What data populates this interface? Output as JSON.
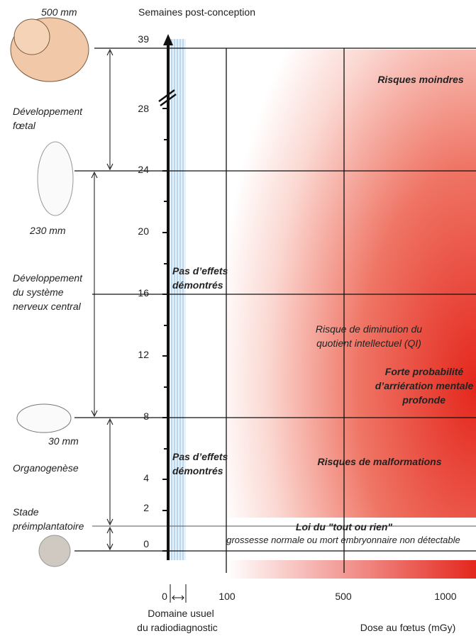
{
  "header": {
    "size_top": "500 mm",
    "axis_title": "Semaines post-conception"
  },
  "y_ticks": [
    "39",
    "28",
    "24",
    "20",
    "16",
    "12",
    "8",
    "4",
    "2",
    "0"
  ],
  "sizes": [
    "230 mm",
    "30 mm"
  ],
  "stages": [
    [
      "Développement",
      "fœtal"
    ],
    [
      "Développement",
      "du système",
      "nerveux central"
    ],
    [
      "Organogenèse"
    ],
    [
      "Stade",
      "préimplantatoire"
    ]
  ],
  "zones": {
    "no_effect_1": [
      "Pas d’effets",
      "démontrés"
    ],
    "no_effect_2": [
      "Pas d’effets",
      "démontrés"
    ],
    "lower_risk": "Risques moindres",
    "iq": [
      "Risque de diminution du",
      "quotient intellectuel (QI)"
    ],
    "retardation": [
      "Forte probabilité",
      "d’arriération mentale",
      "profonde"
    ],
    "malformations": "Risques de malformations",
    "all_or_nothing": "Loi du \"tout ou rien\"",
    "all_or_nothing_detail": "grossesse normale ou mort embryonnaire non détectable"
  },
  "x_axis": {
    "ticks": [
      "0",
      "100",
      "500",
      "1000"
    ],
    "usual_domain": [
      "Domaine usuel",
      "du radiodiagnostic"
    ],
    "title": "Dose au fœtus (mGy)"
  }
}
